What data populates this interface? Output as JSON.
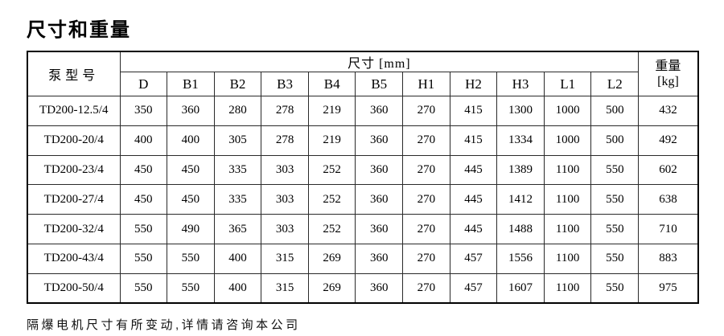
{
  "page": {
    "title": "尺寸和重量",
    "footer_note": "隔爆电机尺寸有所变动,详情请咨询本公司"
  },
  "colors": {
    "background": "#ffffff",
    "text": "#000000",
    "border": "#2a2a2a",
    "outer_border": "#000000"
  },
  "table": {
    "model_header": "泵型号",
    "dim_group_header": "尺寸 [mm]",
    "weight_header_line1": "重量",
    "weight_header_line2": "[kg]",
    "dim_columns": [
      "D",
      "B1",
      "B2",
      "B3",
      "B4",
      "B5",
      "H1",
      "H2",
      "H3",
      "L1",
      "L2"
    ],
    "rows": [
      {
        "model": "TD200-12.5/4",
        "dims": [
          350,
          360,
          280,
          278,
          219,
          360,
          270,
          415,
          1300,
          1000,
          500
        ],
        "weight": 432
      },
      {
        "model": "TD200-20/4",
        "dims": [
          400,
          400,
          305,
          278,
          219,
          360,
          270,
          415,
          1334,
          1000,
          500
        ],
        "weight": 492
      },
      {
        "model": "TD200-23/4",
        "dims": [
          450,
          450,
          335,
          303,
          252,
          360,
          270,
          445,
          1389,
          1100,
          550
        ],
        "weight": 602
      },
      {
        "model": "TD200-27/4",
        "dims": [
          450,
          450,
          335,
          303,
          252,
          360,
          270,
          445,
          1412,
          1100,
          550
        ],
        "weight": 638
      },
      {
        "model": "TD200-32/4",
        "dims": [
          550,
          490,
          365,
          303,
          252,
          360,
          270,
          445,
          1488,
          1100,
          550
        ],
        "weight": 710
      },
      {
        "model": "TD200-43/4",
        "dims": [
          550,
          550,
          400,
          315,
          269,
          360,
          270,
          457,
          1556,
          1100,
          550
        ],
        "weight": 883
      },
      {
        "model": "TD200-50/4",
        "dims": [
          550,
          550,
          400,
          315,
          269,
          360,
          270,
          457,
          1607,
          1100,
          550
        ],
        "weight": 975
      }
    ]
  }
}
